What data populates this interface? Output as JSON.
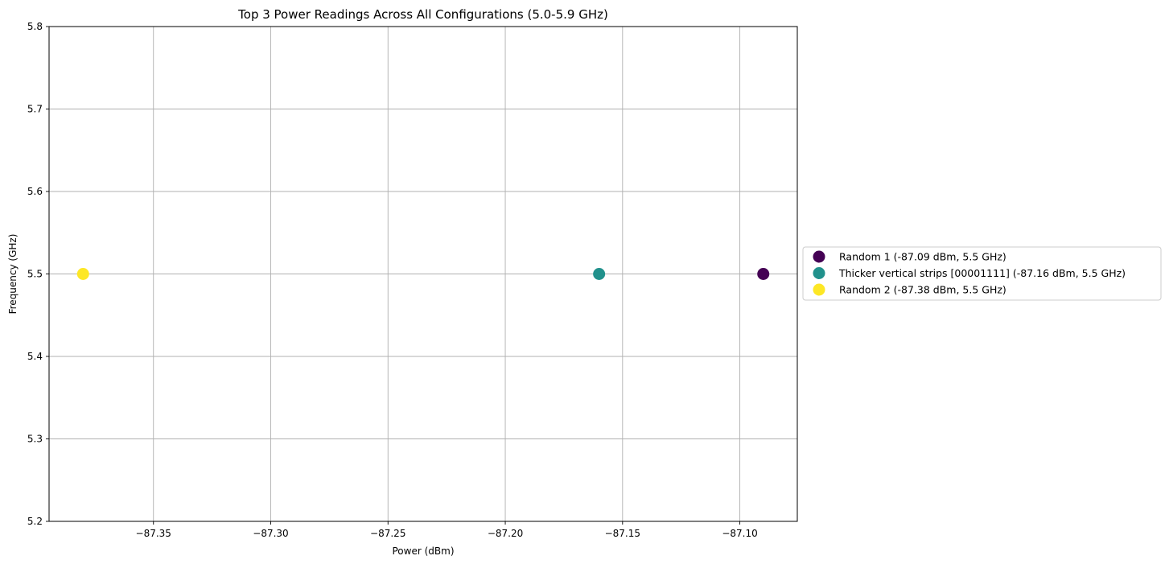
{
  "chart_data": {
    "type": "scatter",
    "title": "Top 3 Power Readings Across All Configurations (5.0-5.9 GHz)",
    "xlabel": "Power (dBm)",
    "ylabel": "Frequency (GHz)",
    "xlim": [
      -87.3945,
      -87.0755
    ],
    "ylim": [
      5.2,
      5.8
    ],
    "xticks": [
      -87.35,
      -87.3,
      -87.25,
      -87.2,
      -87.15,
      -87.1
    ],
    "xtick_labels": [
      "−87.35",
      "−87.30",
      "−87.25",
      "−87.20",
      "−87.15",
      "−87.10"
    ],
    "yticks": [
      5.2,
      5.3,
      5.4,
      5.5,
      5.6,
      5.7,
      5.8
    ],
    "ytick_labels": [
      "5.2",
      "5.3",
      "5.4",
      "5.5",
      "5.6",
      "5.7",
      "5.8"
    ],
    "grid": true,
    "legend_position": "center-right-outside",
    "series": [
      {
        "name": "Random 1 (-87.09 dBm, 5.5 GHz)",
        "color": "#440154",
        "x": [
          -87.09
        ],
        "y": [
          5.5
        ]
      },
      {
        "name": "Thicker vertical strips [00001111] (-87.16 dBm, 5.5 GHz)",
        "color": "#21918c",
        "x": [
          -87.16
        ],
        "y": [
          5.5
        ]
      },
      {
        "name": "Random 2 (-87.38 dBm, 5.5 GHz)",
        "color": "#fde725",
        "x": [
          -87.38
        ],
        "y": [
          5.5
        ]
      }
    ]
  }
}
